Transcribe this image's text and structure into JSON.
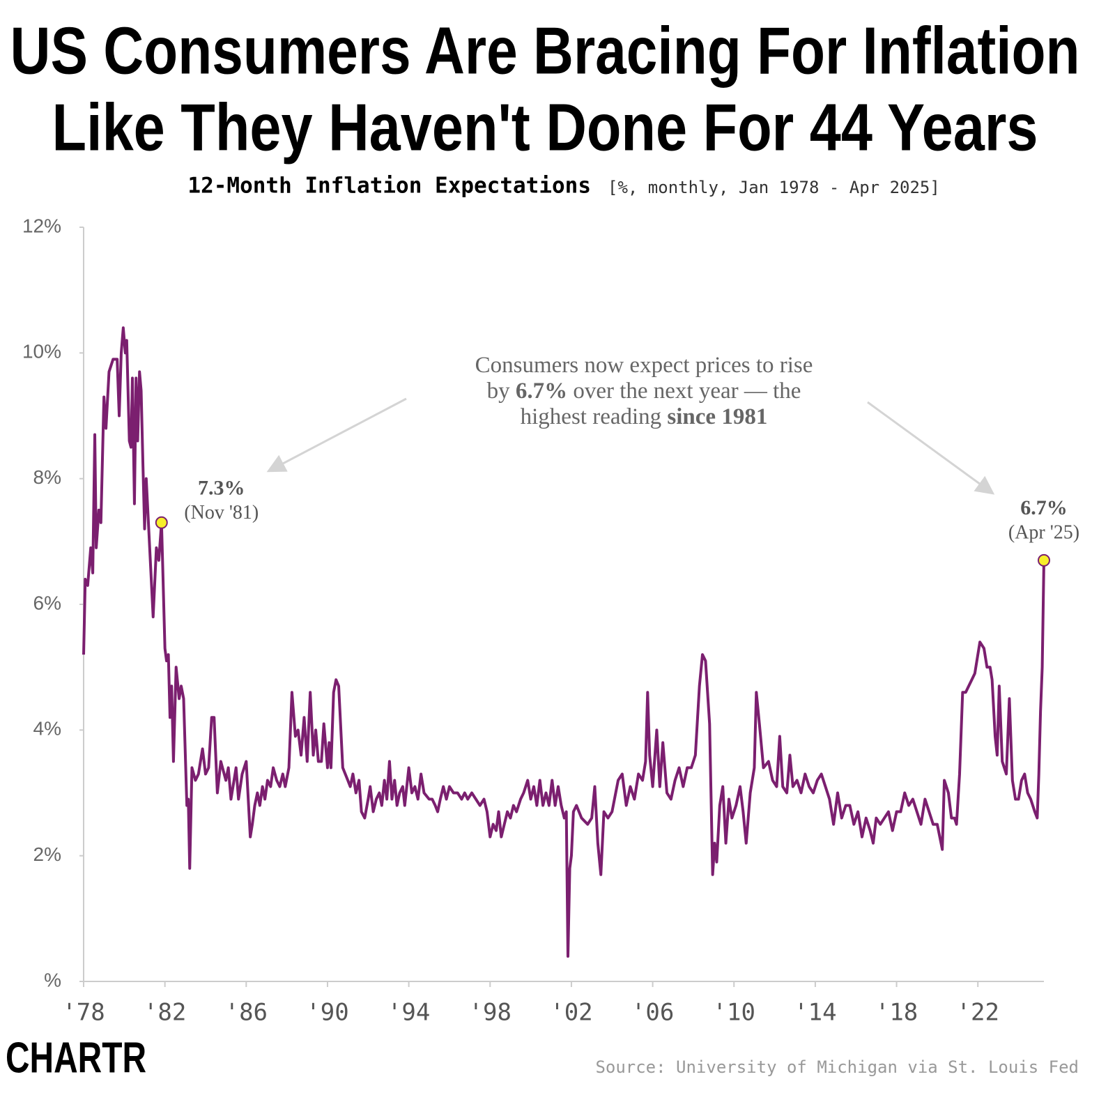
{
  "chart_data": {
    "type": "line",
    "title": [
      "US Consumers Are Bracing For Inflation",
      "Like They Haven't Done For 44 Years"
    ],
    "subtitle": "12-Month Inflation Expectations",
    "subtitle_note": "[%, monthly, Jan 1978 - Apr 2025]",
    "source": "Source: University of Michigan via St. Louis Fed",
    "logo": "CHARTR",
    "color": "#7b1f6f",
    "marker_color": "#f7ef2a",
    "xlim": [
      1978,
      2025.25
    ],
    "ylim": [
      0,
      12
    ],
    "xticks": [
      {
        "value": 1978,
        "label": "'78"
      },
      {
        "value": 1982,
        "label": "'82"
      },
      {
        "value": 1986,
        "label": "'86"
      },
      {
        "value": 1990,
        "label": "'90"
      },
      {
        "value": 1994,
        "label": "'94"
      },
      {
        "value": 1998,
        "label": "'98"
      },
      {
        "value": 2002,
        "label": "'02"
      },
      {
        "value": 2006,
        "label": "'06"
      },
      {
        "value": 2010,
        "label": "'10"
      },
      {
        "value": 2014,
        "label": "'14"
      },
      {
        "value": 2018,
        "label": "'18"
      },
      {
        "value": 2022,
        "label": "'22"
      }
    ],
    "yticks": [
      {
        "value": 0,
        "label": "%"
      },
      {
        "value": 2,
        "label": "2%"
      },
      {
        "value": 4,
        "label": "4%"
      },
      {
        "value": 6,
        "label": "6%"
      },
      {
        "value": 8,
        "label": "8%"
      },
      {
        "value": 10,
        "label": "10%"
      },
      {
        "value": 12,
        "label": "12%"
      }
    ],
    "grid": false,
    "x": [
      1978.0,
      1978.08,
      1978.2,
      1978.35,
      1978.45,
      1978.55,
      1978.62,
      1978.75,
      1978.85,
      1979.0,
      1979.1,
      1979.25,
      1979.45,
      1979.65,
      1979.75,
      1979.85,
      1979.95,
      1980.05,
      1980.12,
      1980.25,
      1980.33,
      1980.4,
      1980.5,
      1980.58,
      1980.66,
      1980.75,
      1980.83,
      1980.92,
      1981.0,
      1981.08,
      1981.25,
      1981.42,
      1981.58,
      1981.7,
      1981.833,
      1982.0,
      1982.08,
      1982.17,
      1982.25,
      1982.33,
      1982.42,
      1982.55,
      1982.7,
      1982.8,
      1982.92,
      1983.08,
      1983.15,
      1983.22,
      1983.33,
      1983.5,
      1983.65,
      1983.85,
      1984.0,
      1984.15,
      1984.3,
      1984.42,
      1984.58,
      1984.75,
      1985.0,
      1985.12,
      1985.25,
      1985.5,
      1985.62,
      1985.8,
      1986.0,
      1986.1,
      1986.2,
      1986.3,
      1986.42,
      1986.55,
      1986.67,
      1986.8,
      1986.92,
      1987.05,
      1987.2,
      1987.33,
      1987.5,
      1987.65,
      1987.8,
      1987.92,
      1988.1,
      1988.25,
      1988.42,
      1988.55,
      1988.7,
      1988.85,
      1989.0,
      1989.15,
      1989.3,
      1989.42,
      1989.55,
      1989.7,
      1989.82,
      1990.0,
      1990.08,
      1990.17,
      1990.3,
      1990.42,
      1990.55,
      1990.75,
      1991.0,
      1991.12,
      1991.25,
      1991.4,
      1991.55,
      1991.67,
      1991.83,
      1992.0,
      1992.1,
      1992.25,
      1992.4,
      1992.55,
      1992.67,
      1992.8,
      1992.92,
      1993.05,
      1993.17,
      1993.3,
      1993.42,
      1993.55,
      1993.7,
      1993.8,
      1994.0,
      1994.15,
      1994.3,
      1994.45,
      1994.6,
      1994.75,
      1995.0,
      1995.15,
      1995.3,
      1995.42,
      1995.55,
      1995.7,
      1995.85,
      1996.0,
      1996.2,
      1996.4,
      1996.6,
      1996.75,
      1996.9,
      1997.1,
      1997.3,
      1997.5,
      1997.7,
      1997.85,
      1998.0,
      1998.15,
      1998.3,
      1998.42,
      1998.55,
      1998.7,
      1998.85,
      1999.0,
      1999.15,
      1999.3,
      1999.5,
      1999.65,
      1999.85,
      2000.0,
      2000.15,
      2000.3,
      2000.45,
      2000.6,
      2000.75,
      2000.9,
      2001.05,
      2001.2,
      2001.35,
      2001.5,
      2001.65,
      2001.75,
      2001.83,
      2001.92,
      2002.0,
      2002.1,
      2002.25,
      2002.5,
      2002.8,
      2003.0,
      2003.15,
      2003.3,
      2003.45,
      2003.6,
      2003.8,
      2004.0,
      2004.3,
      2004.5,
      2004.7,
      2004.9,
      2005.1,
      2005.3,
      2005.5,
      2005.65,
      2005.75,
      2005.85,
      2006.0,
      2006.2,
      2006.35,
      2006.5,
      2006.7,
      2006.9,
      2007.1,
      2007.3,
      2007.5,
      2007.7,
      2007.9,
      2008.1,
      2008.3,
      2008.45,
      2008.6,
      2008.8,
      2008.95,
      2009.05,
      2009.15,
      2009.3,
      2009.45,
      2009.6,
      2009.75,
      2009.9,
      2010.1,
      2010.3,
      2010.45,
      2010.6,
      2010.8,
      2011.0,
      2011.1,
      2011.25,
      2011.45,
      2011.7,
      2011.9,
      2012.1,
      2012.25,
      2012.4,
      2012.6,
      2012.75,
      2012.9,
      2013.1,
      2013.3,
      2013.5,
      2013.7,
      2013.9,
      2014.1,
      2014.3,
      2014.5,
      2014.7,
      2014.9,
      2015.1,
      2015.3,
      2015.5,
      2015.7,
      2015.9,
      2016.1,
      2016.3,
      2016.5,
      2016.7,
      2016.85,
      2017.0,
      2017.2,
      2017.4,
      2017.6,
      2017.8,
      2018.0,
      2018.2,
      2018.4,
      2018.6,
      2018.8,
      2019.0,
      2019.2,
      2019.4,
      2019.6,
      2019.8,
      2020.0,
      2020.25,
      2020.35,
      2020.55,
      2020.7,
      2020.85,
      2020.95,
      2021.1,
      2021.25,
      2021.4,
      2021.55,
      2021.7,
      2021.85,
      2022.1,
      2022.3,
      2022.45,
      2022.6,
      2022.7,
      2022.85,
      2022.95,
      2023.05,
      2023.2,
      2023.4,
      2023.55,
      2023.7,
      2023.85,
      2024.0,
      2024.15,
      2024.3,
      2024.45,
      2024.6,
      2024.8,
      2024.92,
      2025.0,
      2025.083,
      2025.167,
      2025.25
    ],
    "values": [
      5.2,
      6.4,
      6.3,
      6.9,
      6.5,
      8.7,
      6.9,
      7.5,
      7.3,
      9.3,
      8.8,
      9.7,
      9.9,
      9.9,
      9.0,
      10.0,
      10.4,
      10.0,
      10.2,
      8.6,
      8.5,
      9.6,
      7.6,
      9.6,
      8.6,
      9.7,
      9.4,
      8.2,
      7.2,
      8.0,
      6.9,
      5.8,
      6.9,
      6.7,
      7.3,
      5.3,
      5.1,
      5.2,
      4.2,
      4.7,
      3.5,
      5.0,
      4.5,
      4.7,
      4.5,
      2.8,
      2.9,
      1.8,
      3.4,
      3.2,
      3.3,
      3.7,
      3.3,
      3.4,
      4.2,
      4.2,
      3.0,
      3.5,
      3.2,
      3.4,
      2.9,
      3.4,
      2.9,
      3.3,
      3.5,
      2.9,
      2.3,
      2.5,
      2.8,
      3.0,
      2.8,
      3.1,
      2.9,
      3.2,
      3.1,
      3.4,
      3.2,
      3.1,
      3.3,
      3.1,
      3.4,
      4.6,
      3.9,
      4.0,
      3.6,
      4.2,
      3.5,
      4.6,
      3.6,
      4.0,
      3.5,
      3.5,
      4.1,
      3.4,
      3.8,
      3.4,
      4.6,
      4.8,
      4.7,
      3.4,
      3.2,
      3.1,
      3.3,
      3.0,
      3.2,
      2.7,
      2.6,
      2.9,
      3.1,
      2.7,
      2.9,
      3.0,
      2.8,
      3.2,
      2.9,
      3.5,
      2.9,
      3.2,
      2.8,
      3.0,
      3.1,
      2.8,
      3.4,
      3.0,
      3.1,
      2.9,
      3.3,
      3.0,
      2.9,
      2.9,
      2.8,
      2.7,
      2.9,
      3.1,
      2.9,
      3.1,
      3.0,
      3.0,
      2.9,
      3.0,
      2.9,
      3.0,
      2.9,
      2.8,
      2.9,
      2.7,
      2.3,
      2.5,
      2.4,
      2.7,
      2.3,
      2.5,
      2.7,
      2.6,
      2.8,
      2.7,
      2.9,
      3.0,
      3.2,
      2.9,
      3.1,
      2.8,
      3.2,
      2.8,
      3.0,
      2.8,
      3.2,
      2.8,
      3.1,
      2.8,
      2.6,
      2.7,
      0.4,
      1.8,
      2.0,
      2.7,
      2.8,
      2.6,
      2.5,
      2.6,
      3.1,
      2.2,
      1.7,
      2.7,
      2.6,
      2.7,
      3.2,
      3.3,
      2.8,
      3.1,
      2.9,
      3.3,
      3.2,
      3.5,
      4.6,
      3.6,
      3.1,
      4.0,
      3.1,
      3.8,
      3.0,
      2.9,
      3.2,
      3.4,
      3.1,
      3.4,
      3.4,
      3.6,
      4.7,
      5.2,
      5.1,
      4.1,
      1.7,
      2.2,
      1.9,
      2.8,
      3.1,
      2.2,
      2.9,
      2.6,
      2.8,
      3.1,
      2.7,
      2.2,
      3.0,
      3.4,
      4.6,
      4.1,
      3.4,
      3.5,
      3.2,
      3.1,
      3.9,
      3.1,
      3.0,
      3.6,
      3.1,
      3.2,
      3.0,
      3.3,
      3.1,
      3.0,
      3.2,
      3.3,
      3.1,
      2.9,
      2.5,
      3.0,
      2.6,
      2.8,
      2.8,
      2.5,
      2.7,
      2.3,
      2.6,
      2.4,
      2.2,
      2.6,
      2.5,
      2.6,
      2.7,
      2.4,
      2.7,
      2.7,
      3.0,
      2.8,
      2.9,
      2.7,
      2.5,
      2.9,
      2.7,
      2.5,
      2.5,
      2.1,
      3.2,
      3.0,
      2.6,
      2.6,
      2.5,
      3.3,
      4.6,
      4.6,
      4.7,
      4.8,
      4.9,
      5.4,
      5.3,
      5.0,
      5.0,
      4.8,
      3.9,
      3.6,
      4.7,
      3.5,
      3.3,
      4.5,
      3.2,
      2.9,
      2.9,
      3.2,
      3.3,
      3.0,
      2.9,
      2.7,
      2.6,
      3.3,
      4.3,
      5.0,
      6.7
    ],
    "annotations": [
      {
        "x": 1981.833,
        "y": 7.3,
        "label": "7.3%",
        "date": "(Nov '81)"
      },
      {
        "x": 2025.25,
        "y": 6.7,
        "label": "6.7%",
        "date": "(Apr '25)"
      }
    ],
    "callout": [
      [
        {
          "text": "Consumers now expect prices to rise",
          "bold": false
        }
      ],
      [
        {
          "text": "by ",
          "bold": false
        },
        {
          "text": "6.7%",
          "bold": true
        },
        {
          "text": " over the next year — the",
          "bold": false
        }
      ],
      [
        {
          "text": "highest reading ",
          "bold": false
        },
        {
          "text": "since 1981",
          "bold": true
        }
      ]
    ]
  }
}
